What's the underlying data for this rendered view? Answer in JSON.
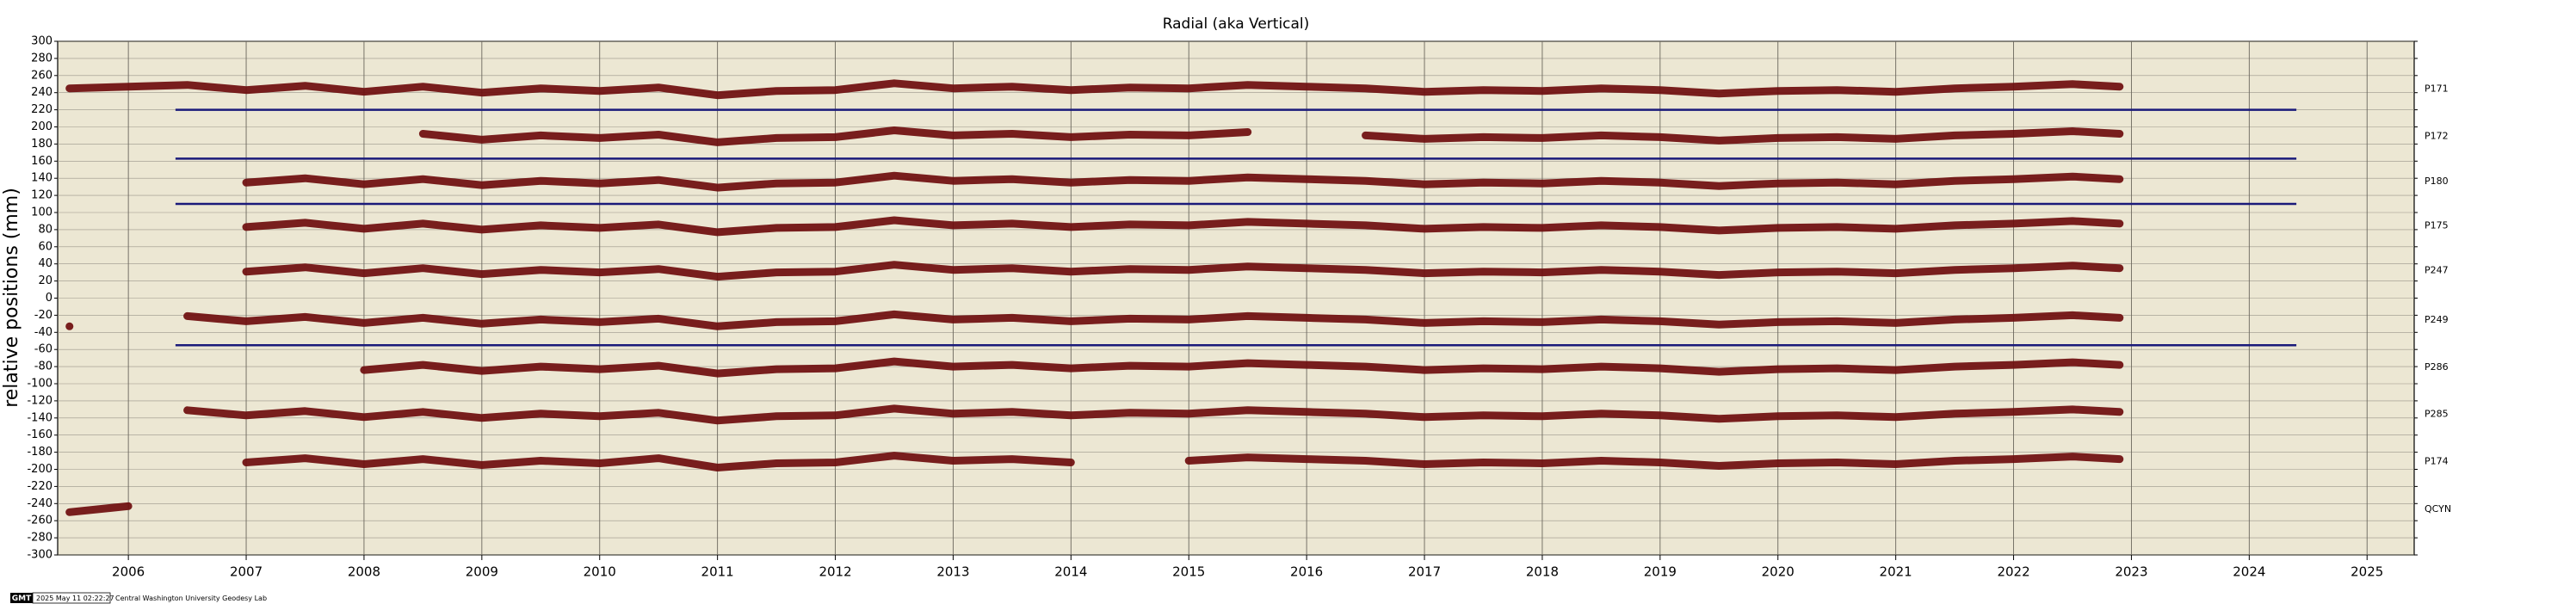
{
  "chart_data": {
    "type": "line",
    "title": "Radial (aka Vertical)",
    "y_label": "relative positions (mm)",
    "x": [
      2005.5,
      2006.0,
      2006.5,
      2007.0,
      2007.5,
      2008.0,
      2008.5,
      2009.0,
      2009.5,
      2010.0,
      2010.5,
      2011.0,
      2011.5,
      2012.0,
      2012.5,
      2013.0,
      2013.5,
      2014.0,
      2014.5,
      2015.0,
      2015.5,
      2016.0,
      2016.5,
      2017.0,
      2017.5,
      2018.0,
      2018.5,
      2019.0,
      2019.5,
      2020.0,
      2020.5,
      2021.0,
      2021.5,
      2022.0,
      2022.5,
      2022.9
    ],
    "xlim": [
      2005.4,
      2025.4
    ],
    "xticks": [
      2006,
      2007,
      2008,
      2009,
      2010,
      2011,
      2012,
      2013,
      2014,
      2015,
      2016,
      2017,
      2018,
      2019,
      2020,
      2021,
      2022,
      2023,
      2024,
      2025
    ],
    "ylim": [
      -300,
      300
    ],
    "yticks": [
      -300,
      -280,
      -260,
      -240,
      -220,
      -200,
      -180,
      -160,
      -140,
      -120,
      -100,
      -80,
      -60,
      -40,
      -20,
      0,
      20,
      40,
      60,
      80,
      100,
      120,
      140,
      160,
      180,
      200,
      220,
      240,
      260,
      280,
      300
    ],
    "grid": true,
    "series": [
      {
        "name": "P171",
        "color": "#6e0d0d",
        "values": [
          245,
          247,
          249,
          243,
          248,
          241,
          247,
          240,
          245,
          242,
          246,
          237,
          242,
          243,
          251,
          245,
          247,
          243,
          246,
          245,
          249,
          247,
          245,
          241,
          243,
          242,
          245,
          243,
          239,
          242,
          243,
          241,
          245,
          247,
          250,
          247
        ]
      },
      {
        "name": "P172",
        "color": "#6e0d0d",
        "values": [
          null,
          null,
          null,
          null,
          null,
          null,
          192,
          185,
          190,
          187,
          191,
          182,
          187,
          188,
          196,
          190,
          192,
          188,
          191,
          190,
          194,
          null,
          190,
          186,
          188,
          187,
          190,
          188,
          184,
          187,
          188,
          186,
          190,
          192,
          195,
          192
        ]
      },
      {
        "name": "P180",
        "color": "#6e0d0d",
        "values": [
          null,
          null,
          null,
          135,
          140,
          133,
          139,
          132,
          137,
          134,
          138,
          129,
          134,
          135,
          143,
          137,
          139,
          135,
          138,
          137,
          141,
          139,
          137,
          133,
          135,
          134,
          137,
          135,
          131,
          134,
          135,
          133,
          137,
          139,
          142,
          139
        ]
      },
      {
        "name": "P175",
        "color": "#6e0d0d",
        "values": [
          null,
          null,
          null,
          83,
          88,
          81,
          87,
          80,
          85,
          82,
          86,
          77,
          82,
          83,
          91,
          85,
          87,
          83,
          86,
          85,
          89,
          87,
          85,
          81,
          83,
          82,
          85,
          83,
          79,
          82,
          83,
          81,
          85,
          87,
          90,
          87
        ]
      },
      {
        "name": "P247",
        "color": "#6e0d0d",
        "values": [
          null,
          null,
          null,
          31,
          36,
          29,
          35,
          28,
          33,
          30,
          34,
          25,
          30,
          31,
          39,
          33,
          35,
          31,
          34,
          33,
          37,
          35,
          33,
          29,
          31,
          30,
          33,
          31,
          27,
          30,
          31,
          29,
          33,
          35,
          38,
          35
        ]
      },
      {
        "name": "P249",
        "color": "#6e0d0d",
        "values": [
          -33,
          null,
          -21,
          -27,
          -22,
          -29,
          -23,
          -30,
          -25,
          -28,
          -24,
          -33,
          -28,
          -27,
          -19,
          -25,
          -23,
          -27,
          -24,
          -25,
          -21,
          -23,
          -25,
          -29,
          -27,
          -28,
          -25,
          -27,
          -31,
          -28,
          -27,
          -29,
          -25,
          -23,
          -20,
          -23
        ]
      },
      {
        "name": "P286",
        "color": "#6e0d0d",
        "values": [
          null,
          null,
          null,
          null,
          null,
          -84,
          -78,
          -85,
          -80,
          -83,
          -79,
          -88,
          -83,
          -82,
          -74,
          -80,
          -78,
          -82,
          -79,
          -80,
          -76,
          -78,
          -80,
          -84,
          -82,
          -83,
          -80,
          -82,
          -86,
          -83,
          -82,
          -84,
          -80,
          -78,
          -75,
          -78
        ]
      },
      {
        "name": "P285",
        "color": "#6e0d0d",
        "values": [
          null,
          null,
          -131,
          -137,
          -132,
          -139,
          -133,
          -140,
          -135,
          -138,
          -134,
          -143,
          -138,
          -137,
          -129,
          -135,
          -133,
          -137,
          -134,
          -135,
          -131,
          -133,
          -135,
          -139,
          -137,
          -138,
          -135,
          -137,
          -141,
          -138,
          -137,
          -139,
          -135,
          -133,
          -130,
          -133
        ]
      },
      {
        "name": "P174",
        "color": "#6e0d0d",
        "values": [
          null,
          null,
          null,
          -192,
          -187,
          -194,
          -188,
          -195,
          -190,
          -193,
          -187,
          -198,
          -193,
          -192,
          -184,
          -190,
          -188,
          -192,
          null,
          -190,
          -186,
          -188,
          -190,
          -194,
          -192,
          -193,
          -190,
          -192,
          -196,
          -193,
          -192,
          -194,
          -190,
          -188,
          -185,
          -188
        ]
      },
      {
        "name": "QCYN",
        "color": "#6e0d0d",
        "values": [
          -250,
          -243,
          null,
          null,
          null,
          null,
          null,
          null,
          null,
          null,
          null,
          null,
          null,
          null,
          null,
          null,
          null,
          null,
          null,
          null,
          null,
          null,
          null,
          null,
          null,
          null,
          null,
          null,
          null,
          null,
          null,
          null,
          null,
          null,
          null,
          null
        ]
      }
    ],
    "hlines": [
      {
        "y": 220,
        "x": [
          2006.4,
          2024.4
        ],
        "color": "#1a1a7a"
      },
      {
        "y": 163,
        "x": [
          2006.4,
          2024.4
        ],
        "color": "#1a1a7a"
      },
      {
        "y": 110,
        "x": [
          2006.4,
          2024.4
        ],
        "color": "#1a1a7a"
      },
      {
        "y": -55,
        "x": [
          2006.4,
          2024.4
        ],
        "color": "#1a1a7a"
      }
    ],
    "footer": {
      "logo": "GMT",
      "timestamp": "2025 May 11 02:22:27",
      "credit": "Central Washington University Geodesy Lab"
    }
  }
}
